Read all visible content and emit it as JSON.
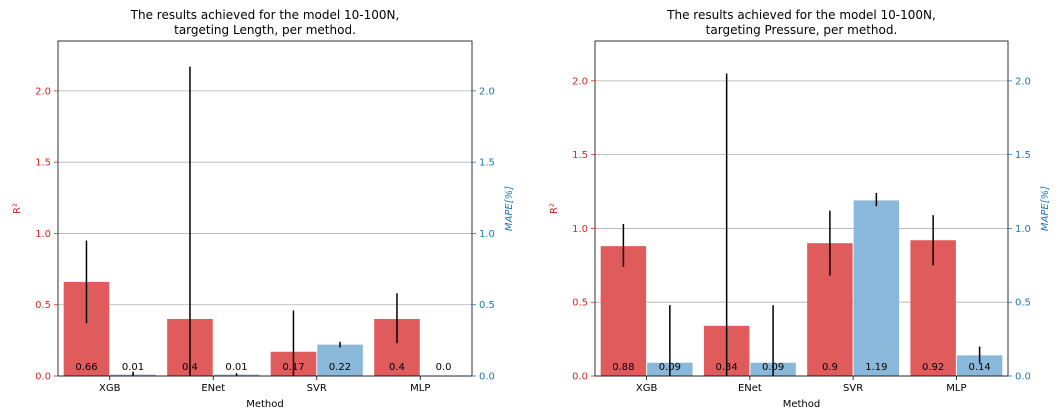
{
  "chart_data": [
    {
      "type": "bar",
      "title_line1": "The results achieved for the model 10-100N,",
      "title_line2": "targeting Length, per method.",
      "xlabel": "Method",
      "ylabel_left": "R²",
      "ylabel_right": "MAPE[%]",
      "categories": [
        "XGB",
        "ENet",
        "SVR",
        "MLP"
      ],
      "ylim_left": [
        0,
        2.35
      ],
      "ylim_right": [
        0,
        2.35
      ],
      "yticks_left": [
        "0.0",
        "0.5",
        "1.0",
        "1.5",
        "2.0"
      ],
      "yticks_right": [
        "0.0",
        "0.5",
        "1.0",
        "1.5",
        "2.0"
      ],
      "grid": "horizontal",
      "series": [
        {
          "axis": "left",
          "values": [
            0.66,
            0.4,
            0.17,
            0.4
          ],
          "labels": [
            "0.66",
            "0.4",
            "0.17",
            "0.4"
          ],
          "error_low": [
            0.37,
            0.0,
            0.0,
            0.23
          ],
          "error_high": [
            0.95,
            2.17,
            0.46,
            0.58
          ]
        },
        {
          "axis": "right",
          "values": [
            0.01,
            0.01,
            0.22,
            0.0
          ],
          "labels": [
            "0.01",
            "0.01",
            "0.22",
            "0.0"
          ],
          "error_low": [
            0.0,
            0.0,
            0.2,
            0.0
          ],
          "error_high": [
            0.03,
            0.02,
            0.24,
            0.0
          ]
        }
      ]
    },
    {
      "type": "bar",
      "title_line1": "The results achieved for the model 10-100N,",
      "title_line2": "targeting Pressure, per method.",
      "xlabel": "Method",
      "ylabel_left": "R²",
      "ylabel_right": "MAPE[%]",
      "categories": [
        "XGB",
        "ENet",
        "SVR",
        "MLP"
      ],
      "ylim_left": [
        0,
        2.27
      ],
      "ylim_right": [
        0,
        2.27
      ],
      "yticks_left": [
        "0.0",
        "0.5",
        "1.0",
        "1.5",
        "2.0"
      ],
      "yticks_right": [
        "0.0",
        "0.5",
        "1.0",
        "1.5",
        "2.0"
      ],
      "grid": "horizontal",
      "series": [
        {
          "axis": "left",
          "values": [
            0.88,
            0.34,
            0.9,
            0.92
          ],
          "labels": [
            "0.88",
            "0.34",
            "0.9",
            "0.92"
          ],
          "error_low": [
            0.74,
            0.0,
            0.68,
            0.75
          ],
          "error_high": [
            1.03,
            2.05,
            1.12,
            1.09
          ]
        },
        {
          "axis": "right",
          "values": [
            0.09,
            0.09,
            1.19,
            0.14
          ],
          "labels": [
            "0.09",
            "0.09",
            "1.19",
            "0.14"
          ],
          "error_low": [
            0.0,
            0.0,
            1.15,
            0.09
          ],
          "error_high": [
            0.48,
            0.48,
            1.24,
            0.2
          ]
        }
      ]
    }
  ],
  "colors": {
    "r2_bar": "#e05b5c",
    "mape_bar": "#8ab8da",
    "r2_axis": "#d62728",
    "mape_axis": "#1f77b4",
    "error_bar": "#000000",
    "grid": "#b0b0b0"
  }
}
